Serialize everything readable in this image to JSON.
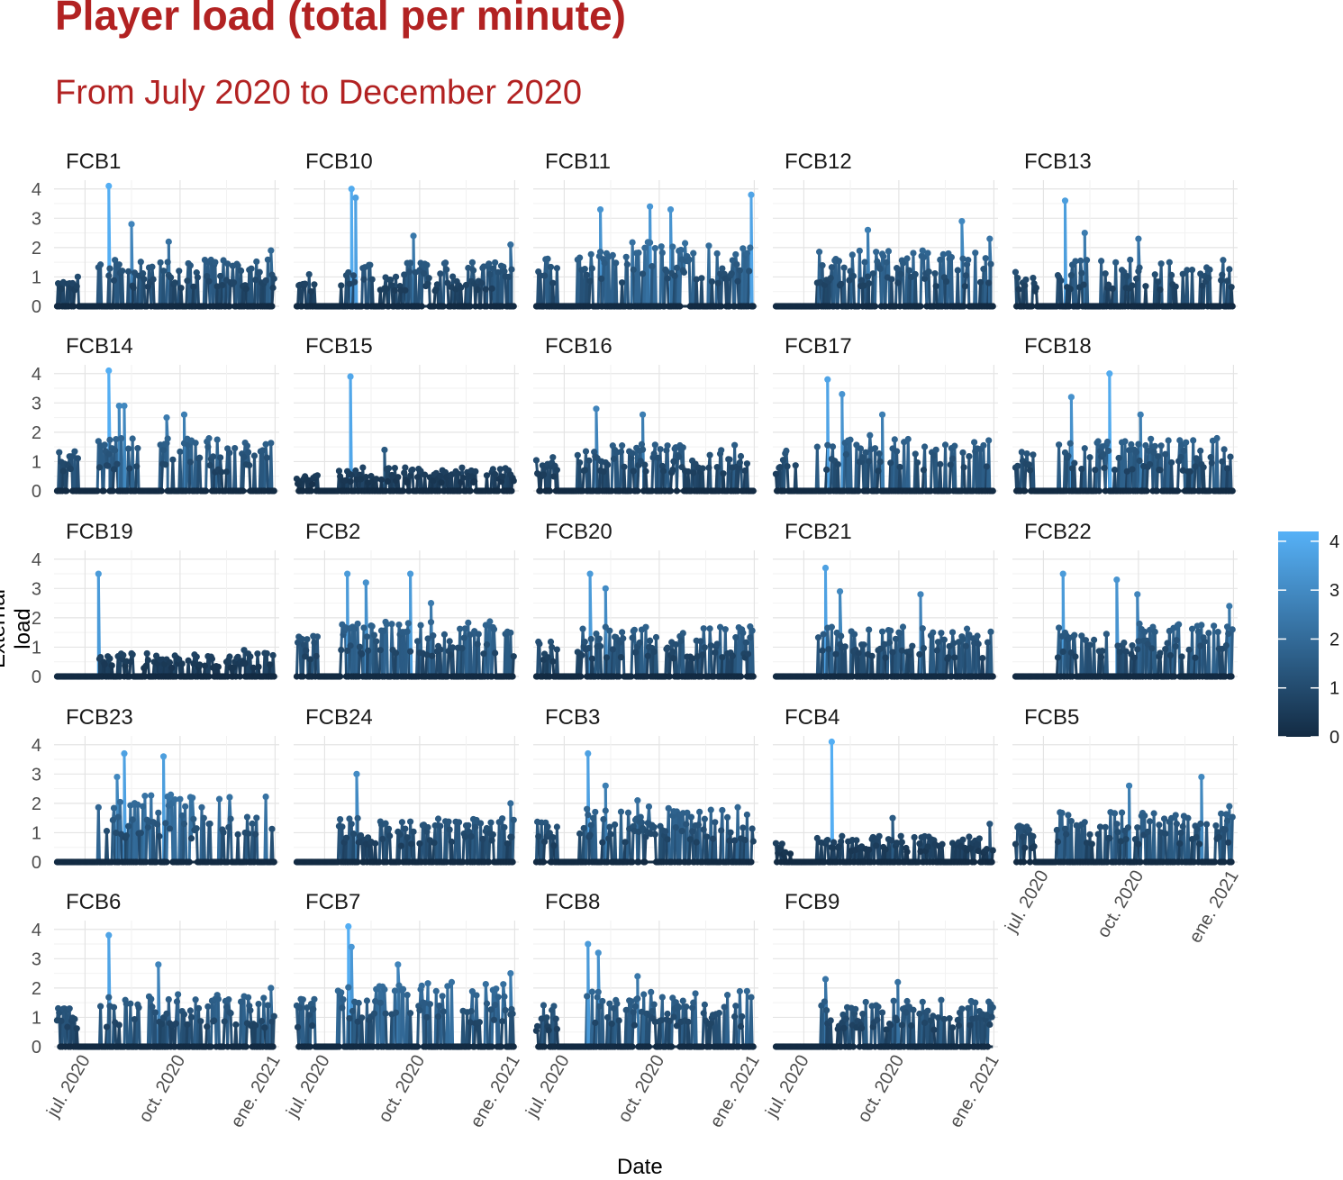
{
  "chart_data": {
    "type": "line",
    "title": "Player load (total per minute)",
    "subtitle": "From July 2020 to December 2020",
    "xlabel": "Date",
    "ylabel": "External load",
    "x_range": [
      "2020-06-01",
      "2021-01-05"
    ],
    "x_tick_labels": [
      "jul. 2020",
      "oct. 2020",
      "ene. 2021"
    ],
    "y_range": [
      0,
      4.3
    ],
    "y_ticks": [
      0,
      1,
      2,
      3,
      4
    ],
    "facet_layout": {
      "columns": 5,
      "rows": 5
    },
    "color_scale": {
      "low": "#132b43",
      "high": "#56b1f7",
      "min": 0,
      "max": 4.2,
      "breaks": [
        0,
        1,
        2,
        3,
        4
      ]
    },
    "legend_position": "right",
    "grid": true,
    "panels": [
      {
        "name": "FCB1",
        "active_start": "2020-06-01",
        "peaks": [
          [
            "2020-07-24",
            4.1
          ],
          [
            "2020-08-15",
            2.8
          ],
          [
            "2020-09-20",
            2.2
          ],
          [
            "2020-12-28",
            1.9
          ]
        ],
        "typical_max": 1.6
      },
      {
        "name": "FCB10",
        "active_start": "2020-06-01",
        "peaks": [
          [
            "2020-07-27",
            4.0
          ],
          [
            "2020-07-31",
            3.7
          ],
          [
            "2020-09-25",
            2.4
          ],
          [
            "2020-12-28",
            2.1
          ]
        ],
        "typical_max": 1.5
      },
      {
        "name": "FCB11",
        "active_start": "2020-06-01",
        "peaks": [
          [
            "2020-08-05",
            3.3
          ],
          [
            "2020-09-22",
            3.4
          ],
          [
            "2020-10-12",
            3.3
          ],
          [
            "2020-12-29",
            3.8
          ]
        ],
        "typical_max": 2.2
      },
      {
        "name": "FCB12",
        "active_start": "2020-07-12",
        "peaks": [
          [
            "2020-09-01",
            2.6
          ],
          [
            "2020-12-01",
            2.9
          ],
          [
            "2020-12-28",
            2.3
          ]
        ],
        "typical_max": 1.9
      },
      {
        "name": "FCB13",
        "active_start": "2020-06-01",
        "peaks": [
          [
            "2020-07-22",
            3.6
          ],
          [
            "2020-08-10",
            2.5
          ],
          [
            "2020-10-01",
            2.3
          ]
        ],
        "typical_max": 1.6
      },
      {
        "name": "FCB14",
        "active_start": "2020-06-05",
        "peaks": [
          [
            "2020-07-24",
            4.1
          ],
          [
            "2020-08-03",
            2.9
          ],
          [
            "2020-08-08",
            2.9
          ],
          [
            "2020-09-18",
            2.5
          ],
          [
            "2020-10-05",
            2.6
          ]
        ],
        "typical_max": 1.8
      },
      {
        "name": "FCB15",
        "active_start": "2020-06-01",
        "peaks": [
          [
            "2020-07-26",
            3.9
          ],
          [
            "2020-08-28",
            1.4
          ]
        ],
        "typical_max": 0.8
      },
      {
        "name": "FCB16",
        "active_start": "2020-06-01",
        "peaks": [
          [
            "2020-08-01",
            2.8
          ],
          [
            "2020-09-15",
            2.6
          ]
        ],
        "typical_max": 1.6
      },
      {
        "name": "FCB17",
        "active_start": "2020-06-01",
        "peaks": [
          [
            "2020-07-24",
            3.8
          ],
          [
            "2020-08-07",
            3.3
          ],
          [
            "2020-09-15",
            2.6
          ]
        ],
        "typical_max": 1.9
      },
      {
        "name": "FCB18",
        "active_start": "2020-06-01",
        "peaks": [
          [
            "2020-07-28",
            3.2
          ],
          [
            "2020-09-03",
            4.0
          ],
          [
            "2020-10-03",
            2.6
          ]
        ],
        "typical_max": 1.8
      },
      {
        "name": "FCB19",
        "active_start": "2020-07-04",
        "peaks": [
          [
            "2020-07-14",
            3.5
          ],
          [
            "2020-12-02",
            0.9
          ]
        ],
        "typical_max": 0.8
      },
      {
        "name": "FCB2",
        "active_start": "2020-06-01",
        "peaks": [
          [
            "2020-07-23",
            3.5
          ],
          [
            "2020-08-10",
            3.2
          ],
          [
            "2020-09-22",
            3.5
          ],
          [
            "2020-10-12",
            2.5
          ]
        ],
        "typical_max": 1.9
      },
      {
        "name": "FCB20",
        "active_start": "2020-06-01",
        "peaks": [
          [
            "2020-07-26",
            3.5
          ],
          [
            "2020-08-10",
            3.0
          ],
          [
            "2020-12-28",
            1.7
          ]
        ],
        "typical_max": 1.7
      },
      {
        "name": "FCB21",
        "active_start": "2020-07-06",
        "peaks": [
          [
            "2020-07-22",
            3.7
          ],
          [
            "2020-08-05",
            2.9
          ],
          [
            "2020-10-22",
            2.8
          ]
        ],
        "typical_max": 1.7
      },
      {
        "name": "FCB22",
        "active_start": "2020-07-06",
        "peaks": [
          [
            "2020-07-20",
            3.5
          ],
          [
            "2020-09-10",
            3.3
          ],
          [
            "2020-09-30",
            2.8
          ],
          [
            "2020-12-28",
            2.4
          ]
        ],
        "typical_max": 1.8
      },
      {
        "name": "FCB23",
        "active_start": "2020-07-06",
        "peaks": [
          [
            "2020-08-08",
            3.7
          ],
          [
            "2020-09-15",
            3.6
          ],
          [
            "2020-08-01",
            2.9
          ]
        ],
        "typical_max": 2.3
      },
      {
        "name": "FCB24",
        "active_start": "2020-07-06",
        "peaks": [
          [
            "2020-08-01",
            3.0
          ],
          [
            "2020-12-28",
            2.0
          ]
        ],
        "typical_max": 1.5
      },
      {
        "name": "FCB3",
        "active_start": "2020-06-01",
        "peaks": [
          [
            "2020-07-24",
            3.7
          ],
          [
            "2020-08-10",
            2.6
          ],
          [
            "2020-09-10",
            2.1
          ]
        ],
        "typical_max": 1.9
      },
      {
        "name": "FCB4",
        "active_start": "2020-06-01",
        "peaks": [
          [
            "2020-07-28",
            4.1
          ],
          [
            "2020-09-25",
            1.5
          ],
          [
            "2020-12-28",
            1.3
          ]
        ],
        "typical_max": 0.9
      },
      {
        "name": "FCB5",
        "active_start": "2020-06-01",
        "peaks": [
          [
            "2020-09-22",
            2.6
          ],
          [
            "2020-12-01",
            2.9
          ],
          [
            "2020-12-28",
            1.9
          ]
        ],
        "typical_max": 1.7
      },
      {
        "name": "FCB6",
        "active_start": "2020-06-01",
        "peaks": [
          [
            "2020-07-24",
            3.8
          ],
          [
            "2020-09-10",
            2.8
          ],
          [
            "2020-12-28",
            2.0
          ]
        ],
        "typical_max": 1.8
      },
      {
        "name": "FCB7",
        "active_start": "2020-06-01",
        "peaks": [
          [
            "2020-07-24",
            4.1
          ],
          [
            "2020-07-27",
            3.4
          ],
          [
            "2020-09-10",
            2.8
          ],
          [
            "2020-12-28",
            2.5
          ]
        ],
        "typical_max": 2.2
      },
      {
        "name": "FCB8",
        "active_start": "2020-06-01",
        "peaks": [
          [
            "2020-07-24",
            3.5
          ],
          [
            "2020-08-03",
            3.2
          ],
          [
            "2020-09-10",
            2.4
          ]
        ],
        "typical_max": 1.9
      },
      {
        "name": "FCB9",
        "active_start": "2020-07-06",
        "peaks": [
          [
            "2020-07-22",
            2.3
          ],
          [
            "2020-09-30",
            2.2
          ]
        ],
        "typical_max": 1.6
      }
    ]
  }
}
